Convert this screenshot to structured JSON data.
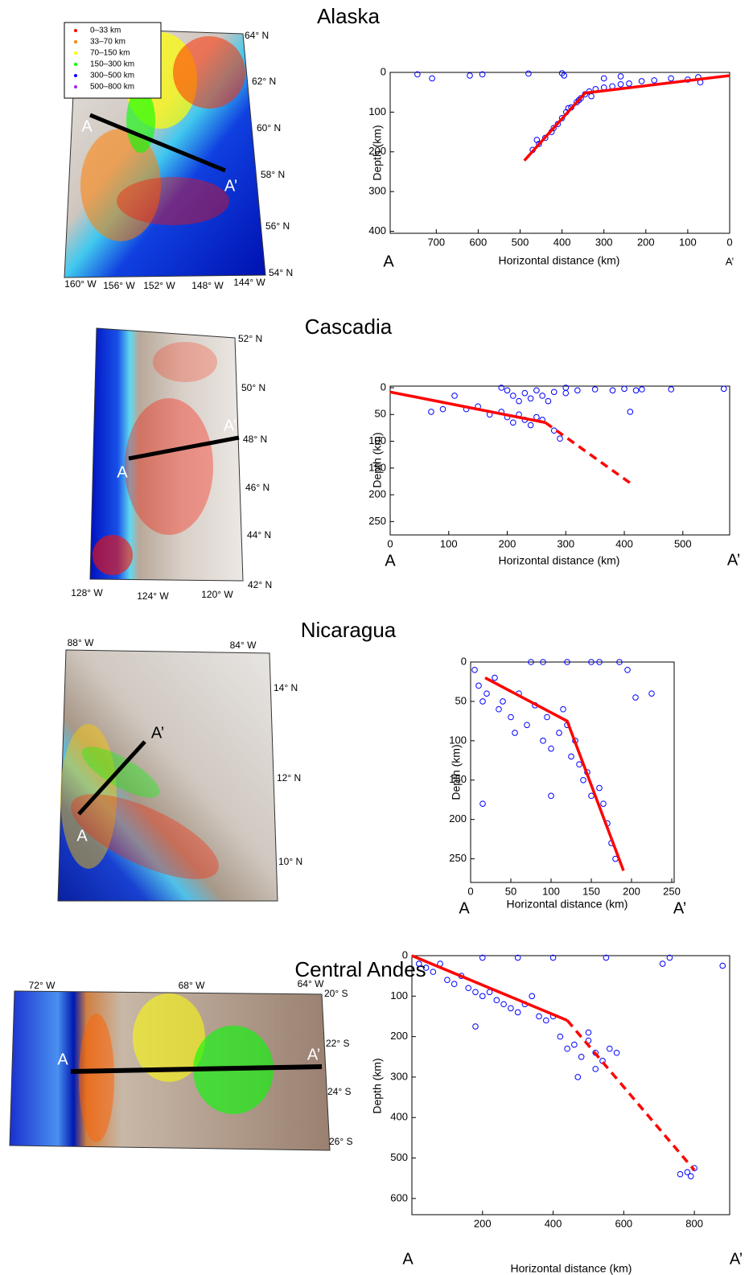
{
  "panels": [
    {
      "title": "Alaska",
      "map": {
        "lon_labels": [
          "160° W",
          "156° W",
          "152° W",
          "148° W",
          "144° W"
        ],
        "lat_labels": [
          "64° N",
          "62° N",
          "60° N",
          "58° N",
          "56° N",
          "54° N"
        ],
        "start": "A",
        "end": "A’",
        "legend": [
          {
            "label": "0–33 km",
            "color": "#ff0000"
          },
          {
            "label": "33–70 km",
            "color": "#ff7f00"
          },
          {
            "label": "70–150 km",
            "color": "#ffff00"
          },
          {
            "label": "150–300 km",
            "color": "#00ff00"
          },
          {
            "label": "300–500 km",
            "color": "#0000ff"
          },
          {
            "label": "500–800 km",
            "color": "#a020f0"
          }
        ]
      }
    },
    {
      "title": "Cascadia",
      "map": {
        "lon_labels": [
          "128° W",
          "124° W",
          "120° W"
        ],
        "lat_labels": [
          "52° N",
          "50° N",
          "48° N",
          "46° N",
          "44° N",
          "42° N"
        ],
        "start": "A",
        "end": "A’"
      }
    },
    {
      "title": "Nicaragua",
      "map": {
        "lon_labels": [
          "88° W",
          "84° W"
        ],
        "lat_labels": [
          "14° N",
          "12° N",
          "10° N"
        ],
        "start": "A",
        "end": "A’"
      }
    },
    {
      "title": "Central Andes",
      "map": {
        "lon_labels": [
          "72° W",
          "68° W",
          "64° W"
        ],
        "lat_labels": [
          "20° S",
          "22° S",
          "24° S",
          "26° S"
        ],
        "start": "A",
        "end": "A’"
      }
    }
  ],
  "chart_data": [
    {
      "type": "scatter",
      "xlabel": "Horizontal distance (km)",
      "ylabel": "Depth (km)",
      "x_end_labels": [
        "A",
        "A’"
      ],
      "xlim": [
        810,
        0
      ],
      "ylim": [
        0,
        405
      ],
      "y_inverted": true,
      "xticks": [
        700,
        600,
        500,
        400,
        300,
        200,
        100,
        0
      ],
      "yticks": [
        0,
        100,
        200,
        300,
        400
      ],
      "series": [
        {
          "type": "scatter",
          "color": "#0000ff",
          "x": [
            745,
            710,
            620,
            590,
            480,
            400,
            395,
            470,
            455,
            440,
            425,
            410,
            400,
            390,
            378,
            365,
            355,
            345,
            335,
            320,
            300,
            280,
            260,
            240,
            210,
            180,
            140,
            100,
            70,
            75,
            460,
            420,
            385,
            360,
            330,
            300,
            260
          ],
          "y": [
            5,
            15,
            8,
            5,
            3,
            2,
            8,
            195,
            180,
            165,
            150,
            130,
            115,
            100,
            88,
            75,
            65,
            55,
            48,
            42,
            38,
            35,
            30,
            28,
            22,
            20,
            15,
            18,
            25,
            12,
            170,
            140,
            90,
            70,
            60,
            15,
            10
          ]
        },
        {
          "type": "line",
          "color": "#ff0000",
          "dash": false,
          "x": [
            490,
            345,
            0
          ],
          "y": [
            222,
            52,
            8
          ]
        }
      ]
    },
    {
      "type": "scatter",
      "xlabel": "Horizontal distance (km)",
      "ylabel": "Depth (km)",
      "x_end_labels": [
        "A",
        "A’"
      ],
      "xlim": [
        0,
        580
      ],
      "ylim": [
        -3,
        275
      ],
      "y_inverted": true,
      "xticks": [
        0,
        100,
        200,
        300,
        400,
        500
      ],
      "yticks": [
        0,
        50,
        100,
        150,
        200,
        250
      ],
      "series": [
        {
          "type": "scatter",
          "color": "#0000ff",
          "x": [
            70,
            90,
            110,
            130,
            150,
            170,
            190,
            200,
            210,
            220,
            230,
            240,
            250,
            260,
            280,
            290,
            200,
            210,
            220,
            230,
            240,
            250,
            260,
            270,
            280,
            300,
            320,
            350,
            380,
            400,
            410,
            420,
            430,
            480,
            570,
            190,
            300
          ],
          "y": [
            45,
            40,
            15,
            40,
            35,
            50,
            45,
            55,
            65,
            50,
            60,
            70,
            55,
            60,
            80,
            95,
            5,
            15,
            25,
            10,
            20,
            5,
            15,
            25,
            8,
            10,
            5,
            3,
            5,
            2,
            45,
            5,
            3,
            3,
            2,
            0,
            0
          ]
        },
        {
          "type": "line",
          "color": "#ff0000",
          "dash": false,
          "x": [
            0,
            265
          ],
          "y": [
            8,
            65
          ]
        },
        {
          "type": "line",
          "color": "#ff0000",
          "dash": true,
          "x": [
            265,
            410
          ],
          "y": [
            65,
            178
          ]
        }
      ]
    },
    {
      "type": "scatter",
      "xlabel": "Horizontal distance (km)",
      "ylabel": "Depth (km)",
      "x_end_labels": [
        "A",
        "A’"
      ],
      "xlim": [
        0,
        253
      ],
      "ylim": [
        0,
        280
      ],
      "y_inverted": true,
      "xticks": [
        0,
        50,
        100,
        150,
        200,
        250
      ],
      "yticks": [
        0,
        50,
        100,
        150,
        200,
        250
      ],
      "series": [
        {
          "type": "scatter",
          "color": "#0000ff",
          "x": [
            5,
            10,
            15,
            20,
            15,
            30,
            35,
            40,
            50,
            55,
            60,
            70,
            75,
            80,
            90,
            95,
            100,
            110,
            115,
            120,
            125,
            130,
            135,
            140,
            145,
            150,
            160,
            165,
            170,
            175,
            180,
            90,
            120,
            160,
            185,
            195,
            205,
            225,
            100,
            150
          ],
          "y": [
            10,
            30,
            50,
            40,
            180,
            20,
            60,
            50,
            70,
            90,
            40,
            80,
            0,
            55,
            100,
            70,
            110,
            90,
            60,
            80,
            120,
            100,
            130,
            150,
            140,
            170,
            160,
            180,
            205,
            230,
            250,
            0,
            0,
            0,
            0,
            10,
            45,
            40,
            170,
            0
          ]
        },
        {
          "type": "line",
          "color": "#ff0000",
          "dash": false,
          "x": [
            18,
            120,
            190
          ],
          "y": [
            20,
            75,
            265
          ]
        }
      ]
    },
    {
      "type": "scatter",
      "xlabel": "Horizontal distance (km)",
      "ylabel": "Depth (km)",
      "x_end_labels": [
        "A",
        "A’"
      ],
      "xlim": [
        0,
        900
      ],
      "ylim": [
        0,
        640
      ],
      "y_inverted": true,
      "xticks": [
        200,
        400,
        600,
        800
      ],
      "yticks": [
        0,
        100,
        200,
        300,
        400,
        500,
        600
      ],
      "series": [
        {
          "type": "scatter",
          "color": "#0000ff",
          "x": [
            20,
            40,
            60,
            80,
            100,
            120,
            140,
            160,
            180,
            200,
            220,
            240,
            260,
            280,
            300,
            320,
            340,
            360,
            380,
            400,
            420,
            440,
            460,
            480,
            500,
            520,
            540,
            560,
            580,
            200,
            300,
            400,
            550,
            730,
            710,
            880,
            760,
            790,
            800,
            780,
            470,
            520,
            500,
            180
          ],
          "y": [
            20,
            30,
            40,
            20,
            60,
            70,
            50,
            80,
            90,
            100,
            90,
            110,
            120,
            130,
            140,
            120,
            100,
            150,
            160,
            150,
            200,
            230,
            220,
            250,
            210,
            240,
            260,
            230,
            240,
            5,
            5,
            5,
            5,
            5,
            20,
            25,
            540,
            545,
            525,
            535,
            300,
            280,
            190,
            175
          ]
        },
        {
          "type": "line",
          "color": "#ff0000",
          "dash": false,
          "x": [
            0,
            440
          ],
          "y": [
            0,
            160
          ]
        },
        {
          "type": "line",
          "color": "#ff0000",
          "dash": true,
          "x": [
            440,
            800
          ],
          "y": [
            160,
            530
          ]
        }
      ]
    }
  ]
}
